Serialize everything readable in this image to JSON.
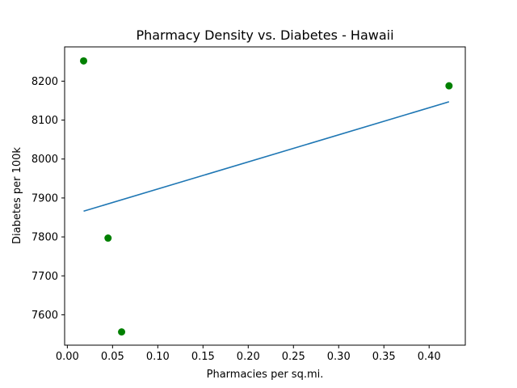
{
  "chart_data": {
    "type": "scatter",
    "title": "Pharmacy Density vs. Diabetes - Hawaii",
    "xlabel": "Pharmacies per sq.mi.",
    "ylabel": "Diabetes per 100k",
    "xlim": [
      -0.003,
      0.44
    ],
    "ylim": [
      7522,
      8288
    ],
    "xticks": [
      0.0,
      0.05,
      0.1,
      0.15,
      0.2,
      0.25,
      0.3,
      0.35,
      0.4
    ],
    "xtick_labels": [
      "0.00",
      "0.05",
      "0.10",
      "0.15",
      "0.20",
      "0.25",
      "0.30",
      "0.35",
      "0.40"
    ],
    "yticks": [
      7600,
      7700,
      7800,
      7900,
      8000,
      8100,
      8200
    ],
    "ytick_labels": [
      "7600",
      "7700",
      "7800",
      "7900",
      "8000",
      "8100",
      "8200"
    ],
    "grid": false,
    "series": [
      {
        "type": "scatter",
        "color": "#008000",
        "points": [
          {
            "x": 0.018,
            "y": 8252
          },
          {
            "x": 0.045,
            "y": 7797
          },
          {
            "x": 0.06,
            "y": 7556
          },
          {
            "x": 0.422,
            "y": 8188
          }
        ]
      },
      {
        "type": "line",
        "color": "#1f77b4",
        "points": [
          {
            "x": 0.018,
            "y": 7866
          },
          {
            "x": 0.422,
            "y": 8147
          }
        ]
      }
    ]
  }
}
